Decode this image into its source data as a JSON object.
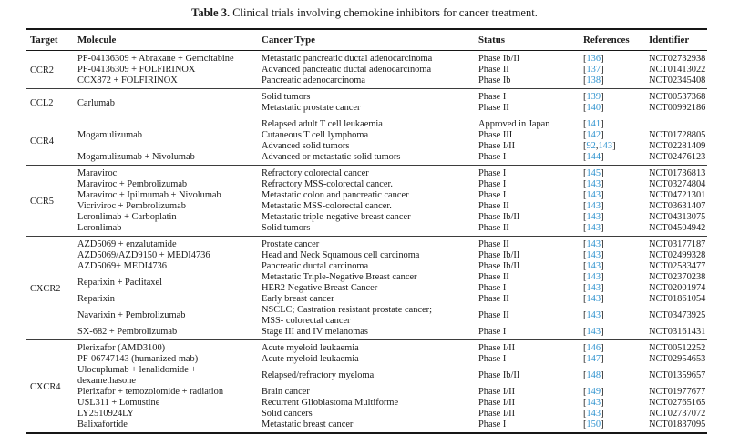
{
  "caption": {
    "label": "Table 3.",
    "text": " Clinical trials involving chemokine inhibitors for cancer treatment."
  },
  "table": {
    "headers": [
      "Target",
      "Molecule",
      "Cancer Type",
      "Status",
      "References",
      "Identifier"
    ],
    "link_color": "#2f93cf",
    "sections": [
      {
        "target": "CCR2",
        "rows": [
          {
            "m": "PF-04136309 + Abraxane + Gemcitabine",
            "c": "Metastatic pancreatic ductal adenocarcinoma",
            "s": "Phase Ib/II",
            "r": [
              "136"
            ],
            "id": "NCT02732938"
          },
          {
            "m": "PF-04136309 + FOLFIRINOX",
            "c": "Advanced pancreatic ductal adenocarcinoma",
            "s": "Phase II",
            "r": [
              "137"
            ],
            "id": "NCT01413022"
          },
          {
            "m": "CCX872 + FOLFIRINOX",
            "c": "Pancreatic adenocarcinoma",
            "s": "Phase Ib",
            "r": [
              "138"
            ],
            "id": "NCT02345408"
          }
        ]
      },
      {
        "target": "CCL2",
        "rows": [
          {
            "m": "Carlumab",
            "mspan": 2,
            "c": "Solid tumors",
            "s": "Phase I",
            "r": [
              "139"
            ],
            "id": "NCT00537368"
          },
          {
            "m": null,
            "c": "Metastatic prostate cancer",
            "s": "Phase II",
            "r": [
              "140"
            ],
            "id": "NCT00992186"
          }
        ]
      },
      {
        "target": "CCR4",
        "rows": [
          {
            "m": "Mogamulizumab",
            "mspan": 3,
            "c": "Relapsed adult T cell leukaemia",
            "s": "Approved in Japan",
            "r": [
              "141"
            ],
            "id": ""
          },
          {
            "m": null,
            "c": "Cutaneous T cell lymphoma",
            "s": "Phase III",
            "r": [
              "142"
            ],
            "id": "NCT01728805"
          },
          {
            "m": null,
            "c": "Advanced solid tumors",
            "s": "Phase I/II",
            "r": [
              "92",
              "143"
            ],
            "id": "NCT02281409"
          },
          {
            "m": "Mogamulizumab + Nivolumab",
            "c": "Advanced or metastatic solid tumors",
            "s": "Phase I",
            "r": [
              "144"
            ],
            "id": "NCT02476123"
          }
        ]
      },
      {
        "target": "CCR5",
        "rows": [
          {
            "m": "Maraviroc",
            "c": "Refractory colorectal cancer",
            "s": "Phase I",
            "r": [
              "145"
            ],
            "id": "NCT01736813"
          },
          {
            "m": "Maraviroc + Pembrolizumab",
            "c": "Refractory MSS-colorectal cancer.",
            "s": "Phase I",
            "r": [
              "143"
            ],
            "id": "NCT03274804"
          },
          {
            "m": "Maraviroc + Ipilmumab + Nivolumab",
            "c": "Metastatic colon and pancreatic cancer",
            "s": "Phase I",
            "r": [
              "143"
            ],
            "id": "NCT04721301"
          },
          {
            "m": "Vicriviroc + Pembrolizumab",
            "c": "Metastatic MSS-colorectal cancer.",
            "s": "Phase II",
            "r": [
              "143"
            ],
            "id": "NCT03631407"
          },
          {
            "m": "Leronlimab + Carboplatin",
            "c": "Metastatic triple-negative breast cancer",
            "s": "Phase Ib/II",
            "r": [
              "143"
            ],
            "id": "NCT04313075"
          },
          {
            "m": "Leronlimab",
            "c": "Solid tumors",
            "s": "Phase II",
            "r": [
              "143"
            ],
            "id": "NCT04504942"
          }
        ]
      },
      {
        "target": "CXCR2",
        "rows": [
          {
            "m": "AZD5069 + enzalutamide",
            "c": "Prostate cancer",
            "s": "Phase II",
            "r": [
              "143"
            ],
            "id": "NCT03177187"
          },
          {
            "m": "AZD5069/AZD9150 + MEDI4736",
            "c": "Head and Neck Squamous cell carcinoma",
            "s": "Phase Ib/II",
            "r": [
              "143"
            ],
            "id": "NCT02499328"
          },
          {
            "m": "AZD5069+ MEDI4736",
            "c": "Pancreatic ductal carcinoma",
            "s": "Phase Ib/II",
            "r": [
              "143"
            ],
            "id": "NCT02583477"
          },
          {
            "m": "Reparixin + Paclitaxel",
            "mspan": 2,
            "c": "Metastatic Triple-Negative Breast cancer",
            "s": "Phase II",
            "r": [
              "143"
            ],
            "id": "NCT02370238"
          },
          {
            "m": null,
            "c": "HER2 Negative Breast Cancer",
            "s": "Phase I",
            "r": [
              "143"
            ],
            "id": "NCT02001974"
          },
          {
            "m": "Reparixin",
            "c": "Early breast cancer",
            "s": "Phase II",
            "r": [
              "143"
            ],
            "id": "NCT01861054"
          },
          {
            "m": "Navarixin + Pembrolizumab",
            "c": "NSCLC; Castration resistant prostate cancer;\nMSS- colorectal cancer",
            "s": "Phase II",
            "r": [
              "143"
            ],
            "id": "NCT03473925"
          },
          {
            "m": "SX-682 + Pembrolizumab",
            "c": "Stage III and IV melanomas",
            "s": "Phase I",
            "r": [
              "143"
            ],
            "id": "NCT03161431"
          }
        ]
      },
      {
        "target": "CXCR4",
        "rows": [
          {
            "m": "Plerixafor (AMD3100)",
            "c": "Acute myeloid leukaemia",
            "s": "Phase I/II",
            "r": [
              "146"
            ],
            "id": "NCT00512252"
          },
          {
            "m": "PF-06747143 (humanized mab)",
            "c": "Acute myeloid leukaemia",
            "s": "Phase I",
            "r": [
              "147"
            ],
            "id": "NCT02954653"
          },
          {
            "m": "Ulocuplumab + lenalidomide +\ndexamethasone",
            "c": "Relapsed/refractory myeloma",
            "s": "Phase Ib/II",
            "r": [
              "148"
            ],
            "id": "NCT01359657"
          },
          {
            "m": "Plerixafor + temozolomide + radiation",
            "c": "Brain cancer",
            "s": "Phase I/II",
            "r": [
              "149"
            ],
            "id": "NCT01977677"
          },
          {
            "m": "USL311 + Lomustine",
            "c": "Recurrent Glioblastoma Multiforme",
            "s": "Phase I/II",
            "r": [
              "143"
            ],
            "id": "NCT02765165"
          },
          {
            "m": "LY2510924LY",
            "c": "Solid cancers",
            "s": "Phase I/II",
            "r": [
              "143"
            ],
            "id": "NCT02737072"
          },
          {
            "m": "Balixafortide",
            "c": "Metastatic breast cancer",
            "s": "Phase I",
            "r": [
              "150"
            ],
            "id": "NCT01837095"
          }
        ]
      }
    ]
  }
}
